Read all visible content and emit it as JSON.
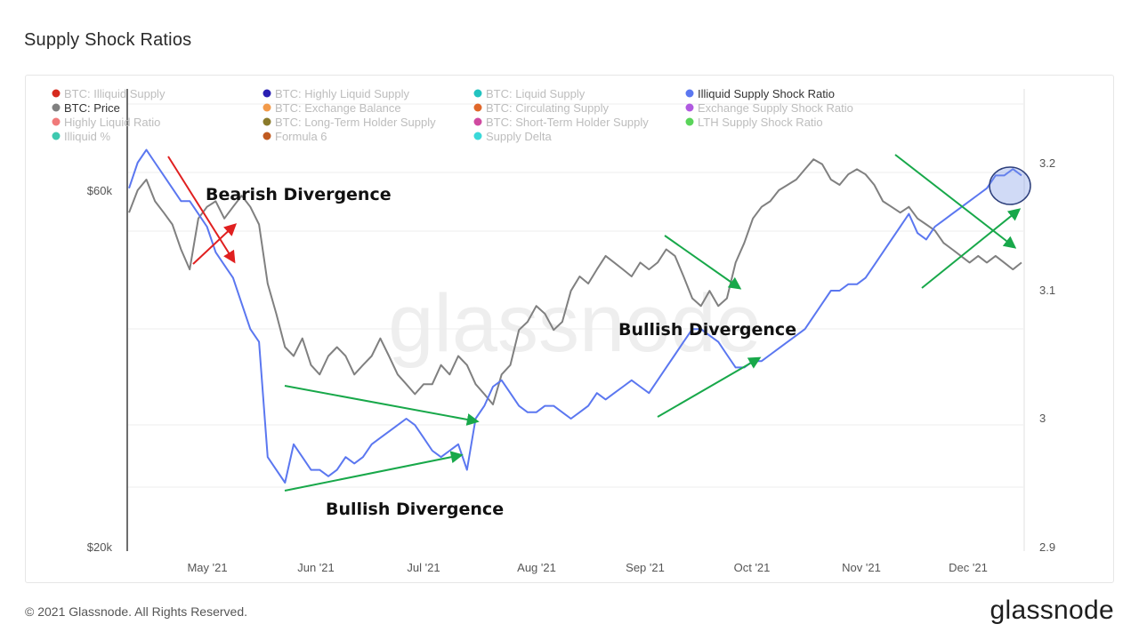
{
  "page": {
    "title": "Supply Shock Ratios",
    "copyright": "© 2021 Glassnode. All Rights Reserved.",
    "brand": "glassnode",
    "watermark": "glassnode"
  },
  "legend": [
    {
      "label": "BTC: Illiquid Supply",
      "color": "#d62a1e",
      "active": false
    },
    {
      "label": "BTC: Highly Liquid Supply",
      "color": "#2a1fb3",
      "active": false
    },
    {
      "label": "BTC: Liquid Supply",
      "color": "#22c3c0",
      "active": false
    },
    {
      "label": "Illiquid Supply Shock Ratio",
      "color": "#5b77f0",
      "active": true
    },
    {
      "label": "BTC: Price",
      "color": "#808080",
      "active": true
    },
    {
      "label": "BTC: Exchange Balance",
      "color": "#f29a4a",
      "active": false
    },
    {
      "label": "BTC: Circulating Supply",
      "color": "#e0672a",
      "active": false
    },
    {
      "label": "Exchange Supply Shock Ratio",
      "color": "#b05ae0",
      "active": false
    },
    {
      "label": "Highly Liquid Ratio",
      "color": "#f07a7a",
      "active": false
    },
    {
      "label": "BTC: Long-Term Holder Supply",
      "color": "#8a7a2a",
      "active": false
    },
    {
      "label": "BTC: Short-Term Holder Supply",
      "color": "#d04aa0",
      "active": false
    },
    {
      "label": "LTH Supply Shock Ratio",
      "color": "#5ad45a",
      "active": false
    },
    {
      "label": "Illiquid %",
      "color": "#3ec9b0",
      "active": false
    },
    {
      "label": "Formula 6",
      "color": "#c05a20",
      "active": false
    },
    {
      "label": "Supply Delta",
      "color": "#3ad9d9",
      "active": false
    }
  ],
  "chart_data": {
    "type": "line",
    "x_ticks": [
      "May '21",
      "Jun '21",
      "Jul '21",
      "Aug '21",
      "Sep '21",
      "Oct '21",
      "Nov '21",
      "Dec '21"
    ],
    "y_left": {
      "ticks": [
        "$60k",
        "$20k"
      ],
      "scale": "log",
      "range": [
        20000,
        80000
      ]
    },
    "y_right": {
      "ticks": [
        "3.2",
        "3.1",
        "3",
        "2.9"
      ],
      "range": [
        2.9,
        3.23
      ]
    },
    "series": [
      {
        "name": "BTC: Price",
        "axis": "left",
        "color": "#808080",
        "values": [
          56000,
          60000,
          62000,
          58000,
          56000,
          54000,
          50000,
          47000,
          55000,
          57000,
          58000,
          55000,
          57000,
          59000,
          57000,
          54000,
          45000,
          41000,
          37000,
          36000,
          38000,
          35000,
          34000,
          36000,
          37000,
          36000,
          34000,
          35000,
          36000,
          38000,
          36000,
          34000,
          33000,
          32000,
          33000,
          33000,
          35000,
          34000,
          36000,
          35000,
          33000,
          32000,
          31000,
          34000,
          35000,
          39000,
          40000,
          42000,
          41000,
          39000,
          40000,
          44000,
          46000,
          45000,
          47000,
          49000,
          48000,
          47000,
          46000,
          48000,
          47000,
          48000,
          50000,
          49000,
          46000,
          43000,
          42000,
          44000,
          42000,
          43000,
          48000,
          51000,
          55000,
          57000,
          58000,
          60000,
          61000,
          62000,
          64000,
          66000,
          65000,
          62000,
          61000,
          63000,
          64000,
          63000,
          61000,
          58000,
          57000,
          56000,
          57000,
          55000,
          54000,
          53000,
          51000,
          50000,
          49000,
          48000,
          49000,
          48000,
          49000,
          48000,
          47000,
          48000
        ]
      },
      {
        "name": "Illiquid Supply Shock Ratio",
        "axis": "right",
        "color": "#5b77f0",
        "values": [
          3.18,
          3.2,
          3.21,
          3.2,
          3.19,
          3.18,
          3.17,
          3.17,
          3.16,
          3.15,
          3.13,
          3.12,
          3.11,
          3.09,
          3.07,
          3.06,
          2.97,
          2.96,
          2.95,
          2.98,
          2.97,
          2.96,
          2.96,
          2.955,
          2.96,
          2.97,
          2.965,
          2.97,
          2.98,
          2.985,
          2.99,
          2.995,
          3.0,
          2.995,
          2.985,
          2.975,
          2.97,
          2.975,
          2.98,
          2.96,
          3.0,
          3.01,
          3.025,
          3.03,
          3.02,
          3.01,
          3.005,
          3.005,
          3.01,
          3.01,
          3.005,
          3.0,
          3.005,
          3.01,
          3.02,
          3.015,
          3.02,
          3.025,
          3.03,
          3.025,
          3.02,
          3.03,
          3.04,
          3.05,
          3.06,
          3.07,
          3.07,
          3.065,
          3.06,
          3.05,
          3.04,
          3.04,
          3.045,
          3.045,
          3.05,
          3.055,
          3.06,
          3.065,
          3.07,
          3.08,
          3.09,
          3.1,
          3.1,
          3.105,
          3.105,
          3.11,
          3.12,
          3.13,
          3.14,
          3.15,
          3.16,
          3.145,
          3.14,
          3.15,
          3.155,
          3.16,
          3.165,
          3.17,
          3.175,
          3.18,
          3.19,
          3.19,
          3.195,
          3.19
        ]
      }
    ]
  },
  "annotations": {
    "bearish": "Bearish Divergence",
    "bullish_1": "Bullish Divergence",
    "bullish_2": "Bullish Divergence"
  }
}
